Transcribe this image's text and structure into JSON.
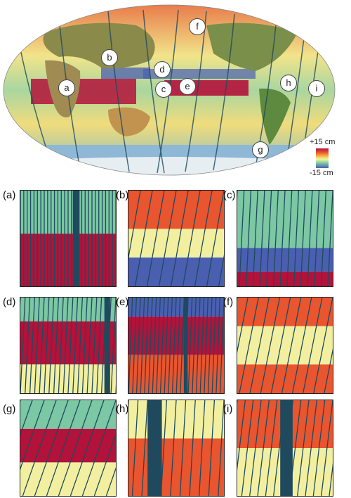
{
  "map": {
    "markers": [
      "a",
      "b",
      "c",
      "d",
      "e",
      "f",
      "g",
      "h",
      "i"
    ]
  },
  "legend": {
    "max_label": "+15 cm",
    "min_label": "-15 cm"
  },
  "panels": [
    {
      "label": "(a)"
    },
    {
      "label": "(b)"
    },
    {
      "label": "(c)"
    },
    {
      "label": "(d)"
    },
    {
      "label": "(e)"
    },
    {
      "label": "(f)"
    },
    {
      "label": "(g)"
    },
    {
      "label": "(h)"
    },
    {
      "label": "(i)"
    }
  ],
  "colors": {
    "high": "#b3123a",
    "mid_high": "#e8552f",
    "mid": "#f2f0a0",
    "mid_low": "#7cc7a4",
    "low": "#4a5fb0",
    "gap": "#1f4a5e"
  }
}
